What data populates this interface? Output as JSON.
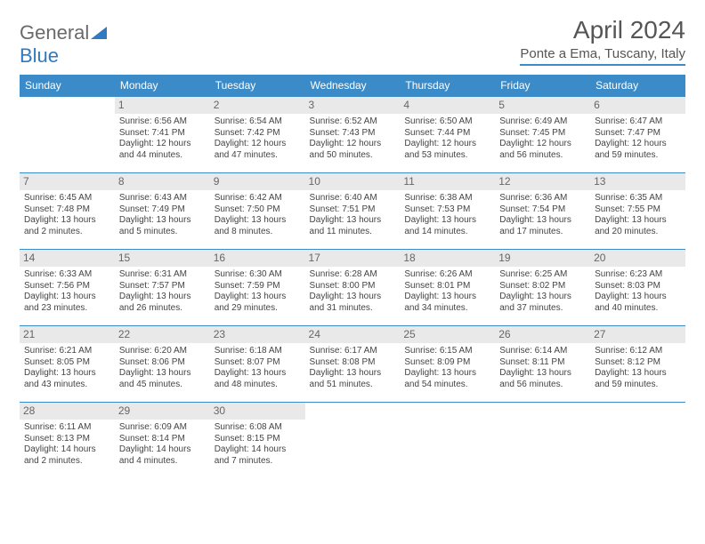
{
  "logo": {
    "word1": "General",
    "word2": "Blue",
    "grey_color": "#6a6a6a",
    "blue_color": "#2f7ac0"
  },
  "title": "April 2024",
  "location": "Ponte a Ema, Tuscany, Italy",
  "header_bg": "#3b8bc9",
  "divider_color": "#3b8bc9",
  "daynum_bg": "#e9e9e9",
  "day_names": [
    "Sunday",
    "Monday",
    "Tuesday",
    "Wednesday",
    "Thursday",
    "Friday",
    "Saturday"
  ],
  "weeks": [
    [
      null,
      {
        "n": "1",
        "sr": "Sunrise: 6:56 AM",
        "ss": "Sunset: 7:41 PM",
        "d1": "Daylight: 12 hours",
        "d2": "and 44 minutes."
      },
      {
        "n": "2",
        "sr": "Sunrise: 6:54 AM",
        "ss": "Sunset: 7:42 PM",
        "d1": "Daylight: 12 hours",
        "d2": "and 47 minutes."
      },
      {
        "n": "3",
        "sr": "Sunrise: 6:52 AM",
        "ss": "Sunset: 7:43 PM",
        "d1": "Daylight: 12 hours",
        "d2": "and 50 minutes."
      },
      {
        "n": "4",
        "sr": "Sunrise: 6:50 AM",
        "ss": "Sunset: 7:44 PM",
        "d1": "Daylight: 12 hours",
        "d2": "and 53 minutes."
      },
      {
        "n": "5",
        "sr": "Sunrise: 6:49 AM",
        "ss": "Sunset: 7:45 PM",
        "d1": "Daylight: 12 hours",
        "d2": "and 56 minutes."
      },
      {
        "n": "6",
        "sr": "Sunrise: 6:47 AM",
        "ss": "Sunset: 7:47 PM",
        "d1": "Daylight: 12 hours",
        "d2": "and 59 minutes."
      }
    ],
    [
      {
        "n": "7",
        "sr": "Sunrise: 6:45 AM",
        "ss": "Sunset: 7:48 PM",
        "d1": "Daylight: 13 hours",
        "d2": "and 2 minutes."
      },
      {
        "n": "8",
        "sr": "Sunrise: 6:43 AM",
        "ss": "Sunset: 7:49 PM",
        "d1": "Daylight: 13 hours",
        "d2": "and 5 minutes."
      },
      {
        "n": "9",
        "sr": "Sunrise: 6:42 AM",
        "ss": "Sunset: 7:50 PM",
        "d1": "Daylight: 13 hours",
        "d2": "and 8 minutes."
      },
      {
        "n": "10",
        "sr": "Sunrise: 6:40 AM",
        "ss": "Sunset: 7:51 PM",
        "d1": "Daylight: 13 hours",
        "d2": "and 11 minutes."
      },
      {
        "n": "11",
        "sr": "Sunrise: 6:38 AM",
        "ss": "Sunset: 7:53 PM",
        "d1": "Daylight: 13 hours",
        "d2": "and 14 minutes."
      },
      {
        "n": "12",
        "sr": "Sunrise: 6:36 AM",
        "ss": "Sunset: 7:54 PM",
        "d1": "Daylight: 13 hours",
        "d2": "and 17 minutes."
      },
      {
        "n": "13",
        "sr": "Sunrise: 6:35 AM",
        "ss": "Sunset: 7:55 PM",
        "d1": "Daylight: 13 hours",
        "d2": "and 20 minutes."
      }
    ],
    [
      {
        "n": "14",
        "sr": "Sunrise: 6:33 AM",
        "ss": "Sunset: 7:56 PM",
        "d1": "Daylight: 13 hours",
        "d2": "and 23 minutes."
      },
      {
        "n": "15",
        "sr": "Sunrise: 6:31 AM",
        "ss": "Sunset: 7:57 PM",
        "d1": "Daylight: 13 hours",
        "d2": "and 26 minutes."
      },
      {
        "n": "16",
        "sr": "Sunrise: 6:30 AM",
        "ss": "Sunset: 7:59 PM",
        "d1": "Daylight: 13 hours",
        "d2": "and 29 minutes."
      },
      {
        "n": "17",
        "sr": "Sunrise: 6:28 AM",
        "ss": "Sunset: 8:00 PM",
        "d1": "Daylight: 13 hours",
        "d2": "and 31 minutes."
      },
      {
        "n": "18",
        "sr": "Sunrise: 6:26 AM",
        "ss": "Sunset: 8:01 PM",
        "d1": "Daylight: 13 hours",
        "d2": "and 34 minutes."
      },
      {
        "n": "19",
        "sr": "Sunrise: 6:25 AM",
        "ss": "Sunset: 8:02 PM",
        "d1": "Daylight: 13 hours",
        "d2": "and 37 minutes."
      },
      {
        "n": "20",
        "sr": "Sunrise: 6:23 AM",
        "ss": "Sunset: 8:03 PM",
        "d1": "Daylight: 13 hours",
        "d2": "and 40 minutes."
      }
    ],
    [
      {
        "n": "21",
        "sr": "Sunrise: 6:21 AM",
        "ss": "Sunset: 8:05 PM",
        "d1": "Daylight: 13 hours",
        "d2": "and 43 minutes."
      },
      {
        "n": "22",
        "sr": "Sunrise: 6:20 AM",
        "ss": "Sunset: 8:06 PM",
        "d1": "Daylight: 13 hours",
        "d2": "and 45 minutes."
      },
      {
        "n": "23",
        "sr": "Sunrise: 6:18 AM",
        "ss": "Sunset: 8:07 PM",
        "d1": "Daylight: 13 hours",
        "d2": "and 48 minutes."
      },
      {
        "n": "24",
        "sr": "Sunrise: 6:17 AM",
        "ss": "Sunset: 8:08 PM",
        "d1": "Daylight: 13 hours",
        "d2": "and 51 minutes."
      },
      {
        "n": "25",
        "sr": "Sunrise: 6:15 AM",
        "ss": "Sunset: 8:09 PM",
        "d1": "Daylight: 13 hours",
        "d2": "and 54 minutes."
      },
      {
        "n": "26",
        "sr": "Sunrise: 6:14 AM",
        "ss": "Sunset: 8:11 PM",
        "d1": "Daylight: 13 hours",
        "d2": "and 56 minutes."
      },
      {
        "n": "27",
        "sr": "Sunrise: 6:12 AM",
        "ss": "Sunset: 8:12 PM",
        "d1": "Daylight: 13 hours",
        "d2": "and 59 minutes."
      }
    ],
    [
      {
        "n": "28",
        "sr": "Sunrise: 6:11 AM",
        "ss": "Sunset: 8:13 PM",
        "d1": "Daylight: 14 hours",
        "d2": "and 2 minutes."
      },
      {
        "n": "29",
        "sr": "Sunrise: 6:09 AM",
        "ss": "Sunset: 8:14 PM",
        "d1": "Daylight: 14 hours",
        "d2": "and 4 minutes."
      },
      {
        "n": "30",
        "sr": "Sunrise: 6:08 AM",
        "ss": "Sunset: 8:15 PM",
        "d1": "Daylight: 14 hours",
        "d2": "and 7 minutes."
      },
      null,
      null,
      null,
      null
    ]
  ]
}
